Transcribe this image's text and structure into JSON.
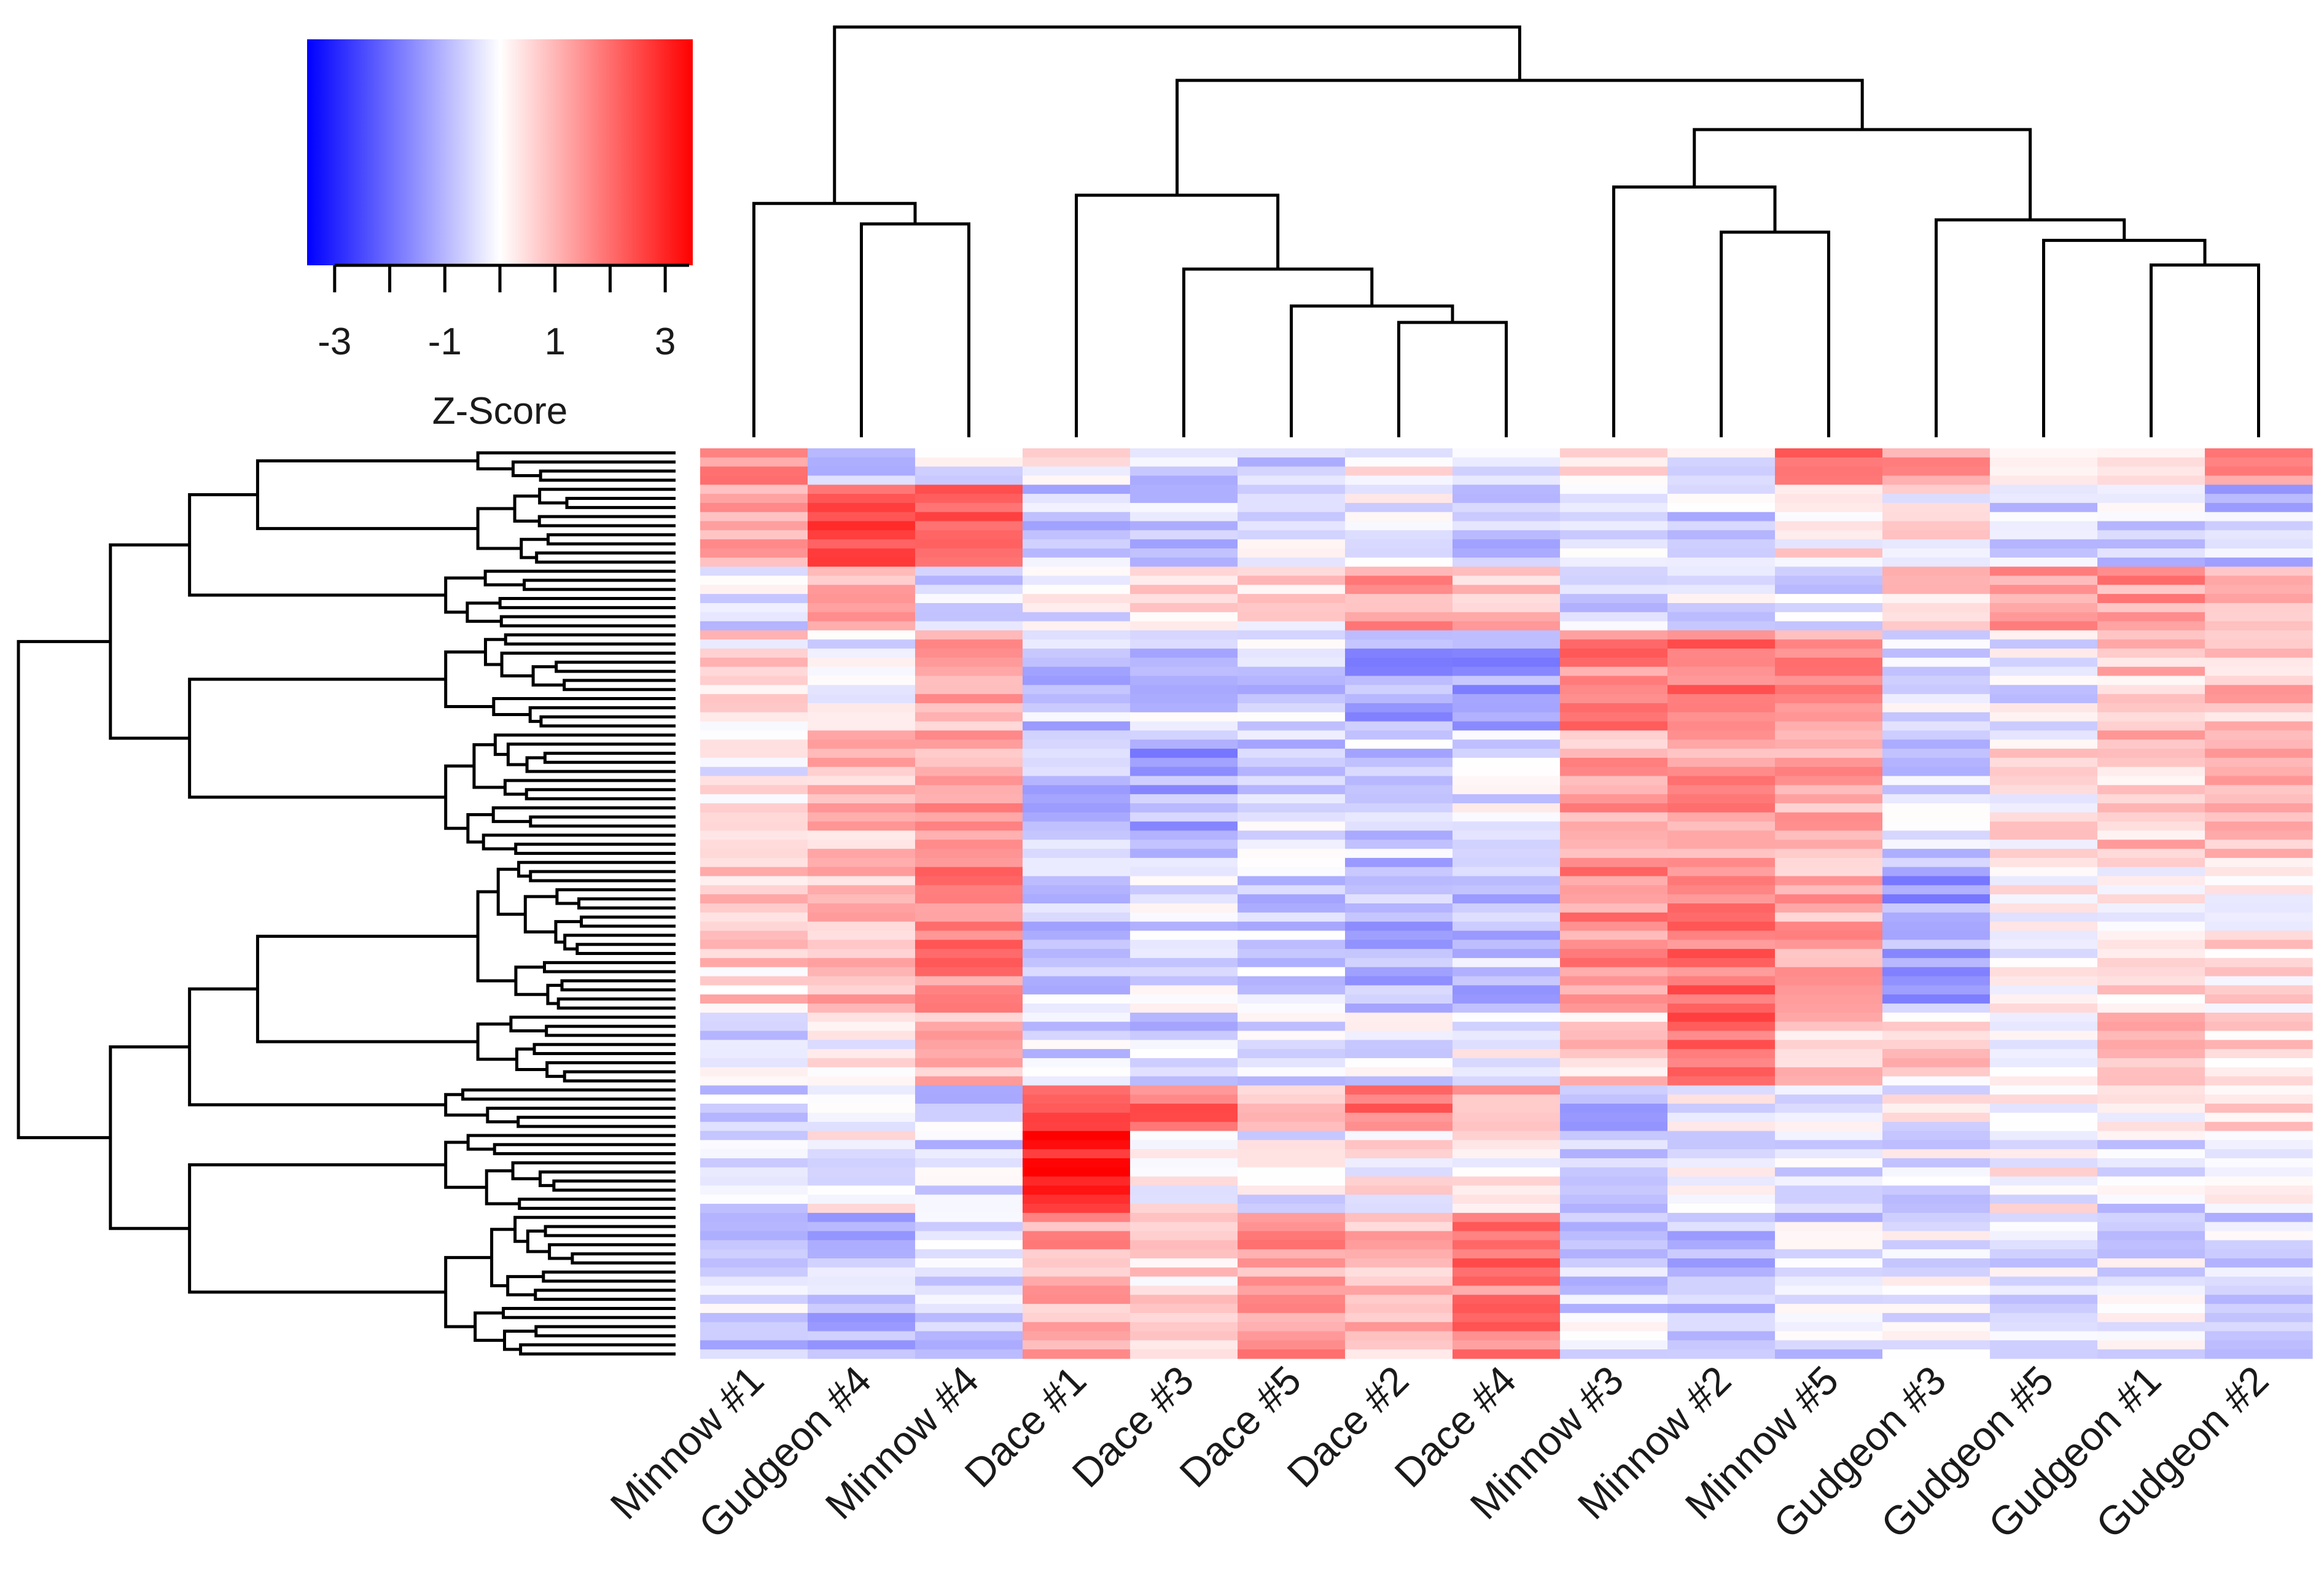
{
  "chart_data": {
    "type": "heatmap",
    "legend": {
      "title": "Z-Score",
      "ticks": [
        -3,
        -1,
        1,
        3
      ],
      "tick_labels": [
        "-3",
        "-1",
        "1",
        "3"
      ],
      "range": [
        -3.5,
        3.5
      ],
      "colors": {
        "low": "#0000ff",
        "mid": "#ffffff",
        "high": "#ff0000"
      }
    },
    "columns": [
      "Minnow #1",
      "Gudgeon #4",
      "Minnow #4",
      "Dace #1",
      "Dace #3",
      "Dace #5",
      "Dace #2",
      "Dace #4",
      "Minnow #3",
      "Minnow #2",
      "Minnow #5",
      "Gudgeon #3",
      "Gudgeon #5",
      "Gudgeon #1",
      "Gudgeon #2"
    ],
    "row_count": 100,
    "blocks": [
      {
        "start": 0,
        "end": 4,
        "means": [
          1.5,
          -0.7,
          -0.2,
          0.0,
          -0.6,
          -0.6,
          0.0,
          -0.6,
          0.4,
          -0.3,
          2.0,
          1.2,
          -0.3,
          0.6,
          1.8
        ]
      },
      {
        "start": 4,
        "end": 13,
        "means": [
          1.2,
          2.4,
          2.2,
          -0.6,
          -0.8,
          -0.4,
          -0.3,
          -0.6,
          -0.5,
          -0.5,
          0.2,
          0.2,
          -0.5,
          -0.5,
          -0.8
        ]
      },
      {
        "start": 13,
        "end": 20,
        "means": [
          -0.5,
          1.0,
          -0.4,
          -0.2,
          0.4,
          0.4,
          1.2,
          1.0,
          -0.5,
          -0.4,
          -0.4,
          0.5,
          1.2,
          1.4,
          0.9
        ]
      },
      {
        "start": 20,
        "end": 31,
        "means": [
          0.4,
          -0.2,
          1.0,
          -0.7,
          -0.6,
          -0.6,
          -1.2,
          -1.2,
          1.6,
          1.8,
          1.5,
          -0.3,
          -0.3,
          0.8,
          0.9
        ]
      },
      {
        "start": 31,
        "end": 45,
        "means": [
          0.0,
          0.9,
          1.4,
          -0.9,
          -1.2,
          -0.6,
          -0.6,
          -0.4,
          1.2,
          1.4,
          1.3,
          -0.6,
          0.3,
          0.8,
          0.9
        ]
      },
      {
        "start": 45,
        "end": 62,
        "means": [
          0.6,
          0.9,
          1.7,
          -0.6,
          -0.4,
          -0.6,
          -1.0,
          -0.8,
          1.6,
          2.0,
          1.2,
          -1.2,
          0.1,
          0.3,
          0.3
        ]
      },
      {
        "start": 62,
        "end": 70,
        "means": [
          -0.4,
          0.2,
          1.2,
          -0.5,
          -0.6,
          -0.5,
          -0.4,
          -0.2,
          0.7,
          2.2,
          0.6,
          0.6,
          -0.3,
          1.0,
          0.7
        ]
      },
      {
        "start": 70,
        "end": 75,
        "means": [
          -0.4,
          -0.3,
          -0.6,
          2.2,
          2.0,
          1.0,
          2.0,
          0.9,
          -1.0,
          -0.2,
          -0.4,
          -0.1,
          -0.1,
          -0.1,
          0.4
        ]
      },
      {
        "start": 75,
        "end": 84,
        "means": [
          -0.5,
          0.0,
          -0.5,
          3.3,
          0.2,
          -0.2,
          0.2,
          0.0,
          -0.4,
          -0.2,
          -0.2,
          -0.3,
          0.0,
          -0.4,
          -0.1
        ]
      },
      {
        "start": 84,
        "end": 100,
        "means": [
          -0.6,
          -0.8,
          -0.7,
          1.2,
          0.6,
          1.3,
          1.0,
          1.8,
          -0.5,
          -0.9,
          -0.5,
          -0.2,
          -0.5,
          -0.4,
          -0.6
        ]
      }
    ],
    "col_dendrogram": {
      "labels_in_order": true
    },
    "row_dendrogram": {
      "leaves": 100
    }
  }
}
